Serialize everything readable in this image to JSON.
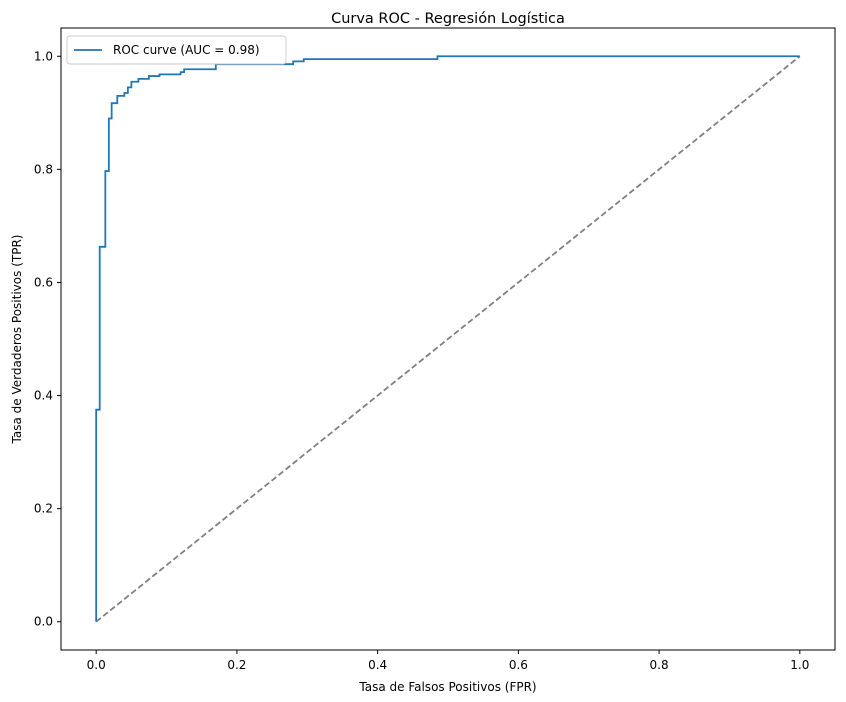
{
  "chart_data": {
    "type": "line",
    "title": "Curva ROC - Regresión Logística",
    "xlabel": "Tasa de Falsos Positivos (FPR)",
    "ylabel": "Tasa de Verdaderos Positivos (TPR)",
    "xlim": [
      -0.05,
      1.05
    ],
    "ylim": [
      -0.05,
      1.05
    ],
    "xticks": [
      0.0,
      0.2,
      0.4,
      0.6,
      0.8,
      1.0
    ],
    "yticks": [
      0.0,
      0.2,
      0.4,
      0.6,
      0.8,
      1.0
    ],
    "xtick_labels": [
      "0.0",
      "0.2",
      "0.4",
      "0.6",
      "0.8",
      "1.0"
    ],
    "ytick_labels": [
      "0.0",
      "0.2",
      "0.4",
      "0.6",
      "0.8",
      "1.0"
    ],
    "grid": false,
    "legend_position": "upper-left",
    "series": [
      {
        "name": "ROC curve (AUC = 0.98)",
        "color": "#1f77b4",
        "style": "solid",
        "x": [
          0.0,
          0.0,
          0.005,
          0.005,
          0.013,
          0.013,
          0.018,
          0.018,
          0.022,
          0.022,
          0.03,
          0.03,
          0.04,
          0.04,
          0.045,
          0.045,
          0.05,
          0.05,
          0.06,
          0.06,
          0.075,
          0.075,
          0.09,
          0.09,
          0.12,
          0.12,
          0.125,
          0.125,
          0.17,
          0.17,
          0.28,
          0.28,
          0.295,
          0.295,
          0.485,
          0.485,
          1.0
        ],
        "y": [
          0.0,
          0.375,
          0.375,
          0.663,
          0.663,
          0.797,
          0.797,
          0.89,
          0.89,
          0.917,
          0.917,
          0.93,
          0.93,
          0.935,
          0.935,
          0.945,
          0.945,
          0.955,
          0.955,
          0.96,
          0.96,
          0.965,
          0.965,
          0.968,
          0.968,
          0.972,
          0.972,
          0.977,
          0.977,
          0.986,
          0.986,
          0.991,
          0.991,
          0.995,
          0.995,
          1.0,
          1.0
        ]
      },
      {
        "name": "",
        "color": "#808080",
        "style": "dashed",
        "x": [
          0.0,
          1.0
        ],
        "y": [
          0.0,
          1.0
        ]
      }
    ]
  }
}
